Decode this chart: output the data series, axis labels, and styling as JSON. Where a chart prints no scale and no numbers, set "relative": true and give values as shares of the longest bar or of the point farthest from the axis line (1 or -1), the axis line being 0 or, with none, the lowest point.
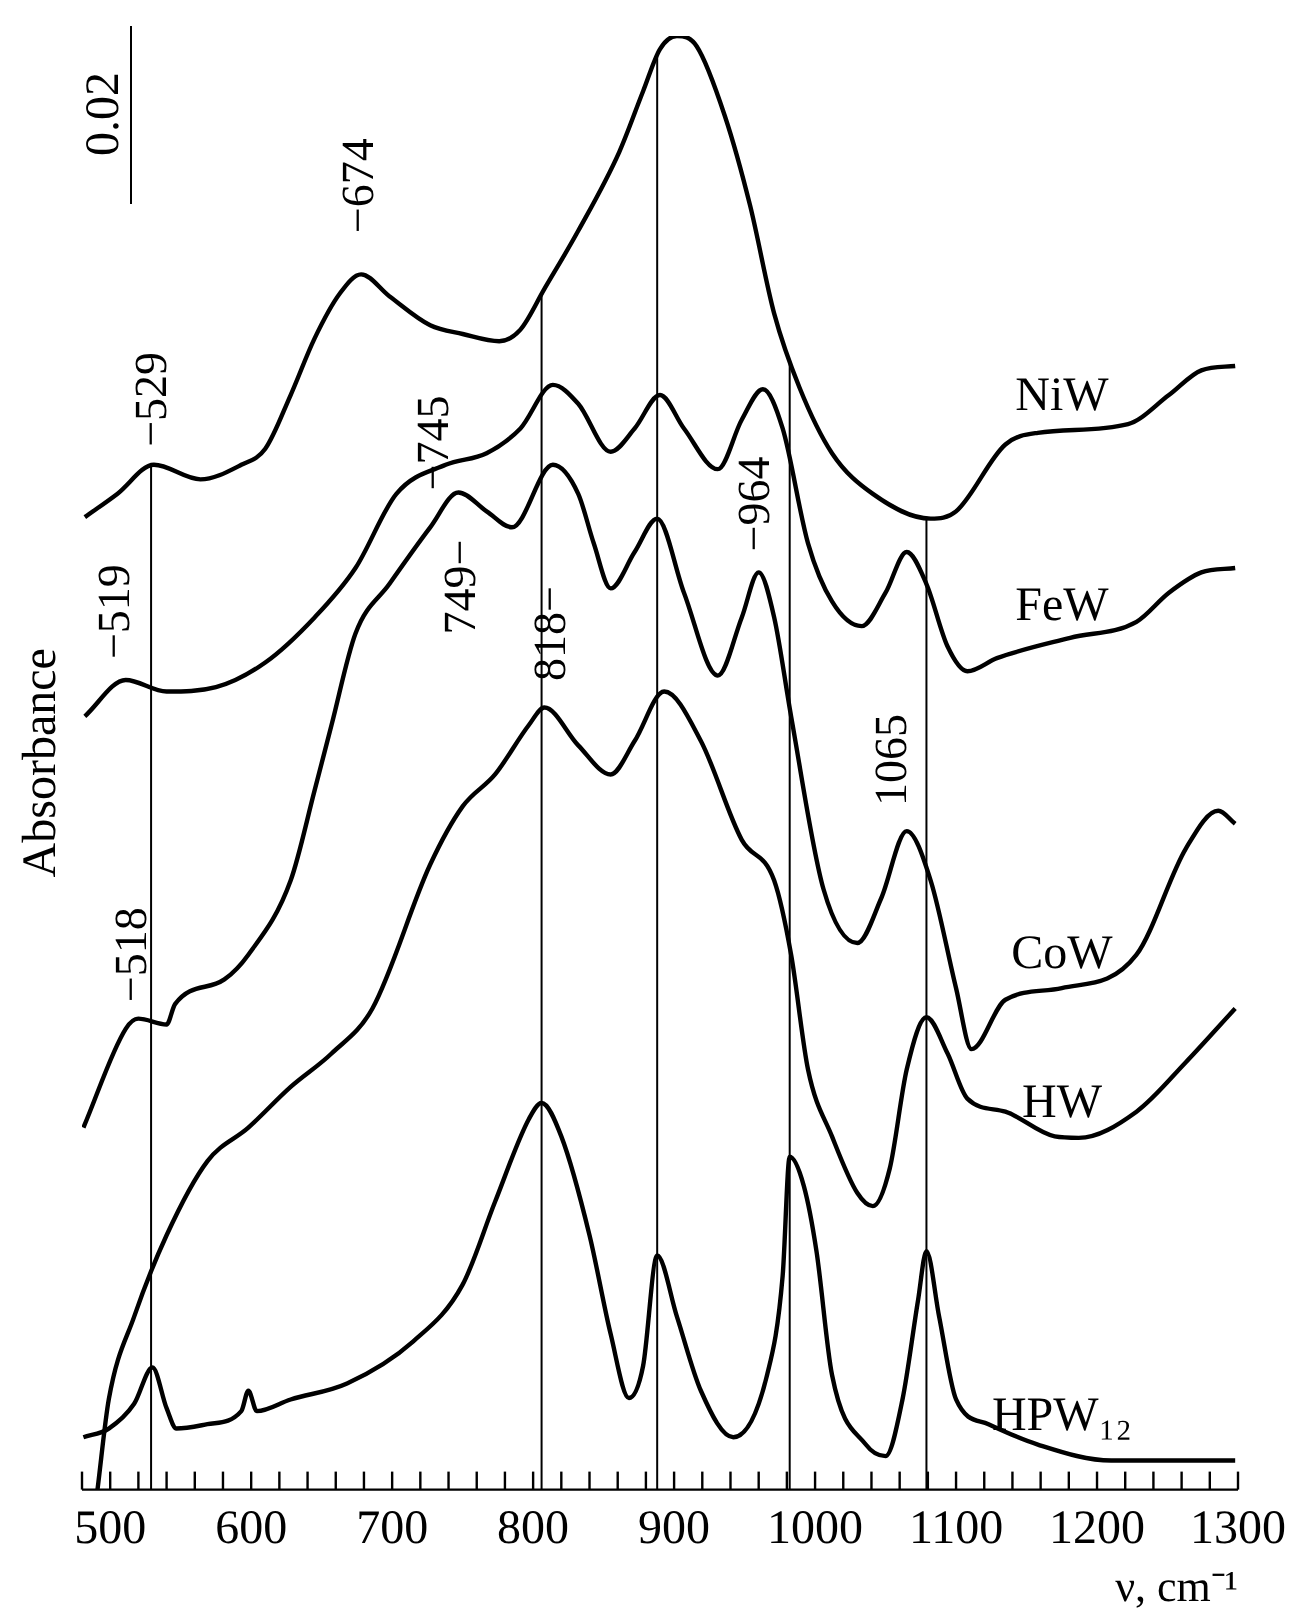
{
  "chart_data": {
    "type": "line",
    "relative": true,
    "xlabel": "ν, cm⁻¹",
    "ylabel": "Absorbance",
    "legend": false,
    "grid": false,
    "marker": "none",
    "tick_labels": "x",
    "xlim": [
      480,
      1300
    ],
    "xticks": [
      {
        "value": 480,
        "label": null
      },
      500,
      {
        "value": 520,
        "label": null
      },
      {
        "value": 540,
        "label": null
      },
      {
        "value": 560,
        "label": null
      },
      {
        "value": 580,
        "label": null
      },
      600,
      {
        "value": 620,
        "label": null
      },
      {
        "value": 640,
        "label": null
      },
      {
        "value": 660,
        "label": null
      },
      {
        "value": 680,
        "label": null
      },
      700,
      {
        "value": 720,
        "label": null
      },
      {
        "value": 740,
        "label": null
      },
      {
        "value": 760,
        "label": null
      },
      {
        "value": 780,
        "label": null
      },
      800,
      {
        "value": 820,
        "label": null
      },
      {
        "value": 840,
        "label": null
      },
      {
        "value": 860,
        "label": null
      },
      {
        "value": 880,
        "label": null
      },
      900,
      {
        "value": 920,
        "label": null
      },
      {
        "value": 940,
        "label": null
      },
      {
        "value": 960,
        "label": null
      },
      {
        "value": 980,
        "label": null
      },
      1000,
      {
        "value": 1020,
        "label": null
      },
      {
        "value": 1040,
        "label": null
      },
      {
        "value": 1060,
        "label": null
      },
      {
        "value": 1080,
        "label": null
      },
      1100,
      {
        "value": 1120,
        "label": null
      },
      {
        "value": 1140,
        "label": null
      },
      {
        "value": 1160,
        "label": null
      },
      {
        "value": 1180,
        "label": null
      },
      1200,
      {
        "value": 1220,
        "label": null
      },
      {
        "value": 1240,
        "label": null
      },
      {
        "value": 1260,
        "label": null
      },
      {
        "value": 1280,
        "label": null
      },
      1300
    ],
    "series": [
      {
        "name": "NiW",
        "color": "#000000",
        "x": [
          482,
          505,
          531,
          564,
          593,
          610,
          628,
          645,
          663,
          678,
          698,
          727,
          750,
          776,
          791,
          808,
          832,
          861,
          878,
          890,
          902,
          916,
          936,
          954,
          971,
          989,
          1012,
          1041,
          1082,
          1100,
          1135,
          1158,
          1222,
          1251,
          1274,
          1298
        ],
        "values": [
          0.669,
          0.685,
          0.705,
          0.695,
          0.705,
          0.716,
          0.753,
          0.792,
          0.823,
          0.836,
          0.821,
          0.801,
          0.795,
          0.79,
          0.798,
          0.826,
          0.866,
          0.92,
          0.962,
          0.991,
          1,
          0.993,
          0.945,
          0.883,
          0.809,
          0.758,
          0.713,
          0.685,
          0.668,
          0.673,
          0.719,
          0.727,
          0.733,
          0.753,
          0.77,
          0.773
        ]
      },
      {
        "name": "FeW",
        "color": "#000000",
        "x": [
          482,
          511,
          540,
          575,
          610,
          645,
          674,
          703,
          738,
          767,
          791,
          814,
          832,
          855,
          872,
          890,
          907,
          931,
          948,
          963,
          977,
          995,
          1012,
          1033,
          1050,
          1065,
          1079,
          1094,
          1108,
          1129,
          1181,
          1228,
          1251,
          1274,
          1298
        ],
        "values": [
          0.532,
          0.557,
          0.549,
          0.552,
          0.569,
          0.6,
          0.634,
          0.685,
          0.705,
          0.713,
          0.73,
          0.76,
          0.747,
          0.714,
          0.73,
          0.753,
          0.73,
          0.702,
          0.736,
          0.757,
          0.73,
          0.651,
          0.611,
          0.594,
          0.617,
          0.645,
          0.623,
          0.58,
          0.563,
          0.572,
          0.586,
          0.597,
          0.617,
          0.631,
          0.634
        ]
      },
      {
        "name": "CoW",
        "color": "#000000",
        "x": [
          481,
          511,
          520,
          540,
          546,
          581,
          598,
          628,
          645,
          657,
          674,
          698,
          727,
          747,
          767,
          785,
          814,
          832,
          843,
          855,
          872,
          888,
          907,
          931,
          948,
          960,
          971,
          983,
          1006,
          1030,
          1047,
          1065,
          1082,
          1100,
          1111,
          1135,
          1175,
          1228,
          1263,
          1286,
          1298
        ],
        "values": [
          0.249,
          0.317,
          0.324,
          0.32,
          0.334,
          0.351,
          0.368,
          0.419,
          0.481,
          0.526,
          0.589,
          0.623,
          0.662,
          0.686,
          0.673,
          0.662,
          0.705,
          0.685,
          0.651,
          0.62,
          0.645,
          0.668,
          0.617,
          0.56,
          0.6,
          0.631,
          0.6,
          0.532,
          0.413,
          0.376,
          0.407,
          0.453,
          0.419,
          0.345,
          0.303,
          0.337,
          0.345,
          0.368,
          0.441,
          0.467,
          0.458
        ]
      },
      {
        "name": "HW",
        "color": "#000000",
        "x": [
          491,
          499,
          517,
          540,
          569,
          598,
          628,
          657,
          686,
          727,
          750,
          773,
          797,
          808,
          832,
          855,
          872,
          893,
          919,
          948,
          971,
          983,
          995,
          1012,
          1030,
          1041,
          1053,
          1065,
          1079,
          1094,
          1108,
          1135,
          1170,
          1187,
          1228,
          1263,
          1298
        ],
        "values": [
          0,
          0.062,
          0.119,
          0.175,
          0.226,
          0.249,
          0.277,
          0.3,
          0.331,
          0.43,
          0.47,
          0.492,
          0.526,
          0.538,
          0.512,
          0.492,
          0.515,
          0.549,
          0.515,
          0.447,
          0.419,
          0.368,
          0.289,
          0.243,
          0.204,
          0.195,
          0.221,
          0.289,
          0.325,
          0.3,
          0.269,
          0.26,
          0.243,
          0.242,
          0.26,
          0.294,
          0.331
        ]
      },
      {
        "name": "HPW₁₂",
        "color": "#000000",
        "x": [
          481,
          499,
          517,
          530,
          540,
          547,
          569,
          593,
          598,
          604,
          628,
          668,
          715,
          750,
          773,
          797,
          806,
          820,
          840,
          855,
          868,
          878,
          888,
          902,
          919,
          942,
          966,
          977,
          982,
          992,
          1001,
          1012,
          1036,
          1050,
          1062,
          1073,
          1079,
          1088,
          1100,
          1123,
          1158,
          1210,
          1298
        ],
        "values": [
          0.036,
          0.042,
          0.059,
          0.084,
          0.056,
          0.042,
          0.045,
          0.054,
          0.068,
          0.054,
          0.062,
          0.073,
          0.102,
          0.141,
          0.198,
          0.255,
          0.266,
          0.243,
          0.175,
          0.107,
          0.063,
          0.085,
          0.161,
          0.119,
          0.068,
          0.036,
          0.079,
          0.147,
          0.229,
          0.209,
          0.164,
          0.079,
          0.031,
          0.023,
          0.062,
          0.13,
          0.164,
          0.119,
          0.062,
          0.045,
          0.031,
          0.02,
          0.02
        ]
      }
    ],
    "ref_lines": [
      {
        "axis": "x",
        "value": 529,
        "color": "#000000"
      },
      {
        "axis": "x",
        "value": 806,
        "color": "#000000"
      },
      {
        "axis": "x",
        "value": 888,
        "color": "#000000"
      },
      {
        "axis": "x",
        "value": 982,
        "color": "#000000"
      },
      {
        "axis": "x",
        "value": 1079,
        "color": "#000000"
      }
    ],
    "annotations": [
      "0.02",
      "−529",
      "−674",
      "−745",
      "−519",
      "749−",
      "818−",
      "−964",
      "1065",
      "−518"
    ]
  }
}
